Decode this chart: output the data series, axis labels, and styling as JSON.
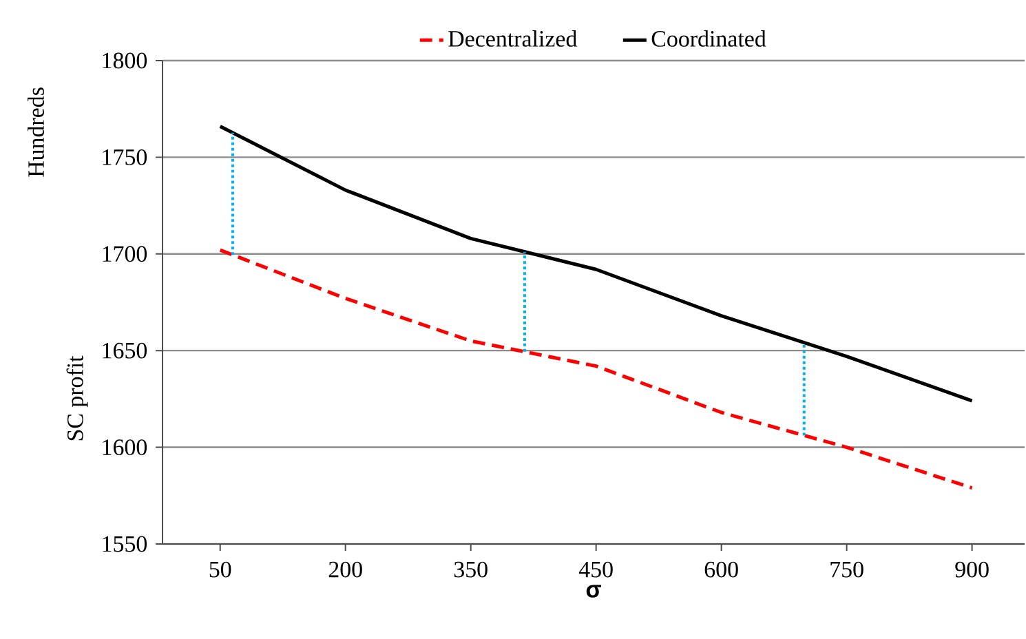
{
  "chart_data": {
    "type": "line",
    "xlabel": "σ",
    "ylabel": "SC profit",
    "annotations": [
      "Hundreds"
    ],
    "categories": [
      "50",
      "200",
      "350",
      "450",
      "600",
      "750",
      "900"
    ],
    "series": [
      {
        "name": "Decentralized",
        "color": "#ff0000",
        "line_style": "dashed",
        "values": [
          1702,
          1677,
          1655,
          1642,
          1618,
          1600,
          1579
        ]
      },
      {
        "name": "Coordinated",
        "color": "#000000",
        "line_style": "solid",
        "values": [
          1766,
          1733,
          1708,
          1692,
          1668,
          1647,
          1624
        ]
      }
    ],
    "ylim": [
      1550,
      1800
    ],
    "yticks": [
      1550,
      1600,
      1650,
      1700,
      1750,
      1800
    ],
    "grid": "y",
    "legend": "top",
    "marker": "none"
  }
}
